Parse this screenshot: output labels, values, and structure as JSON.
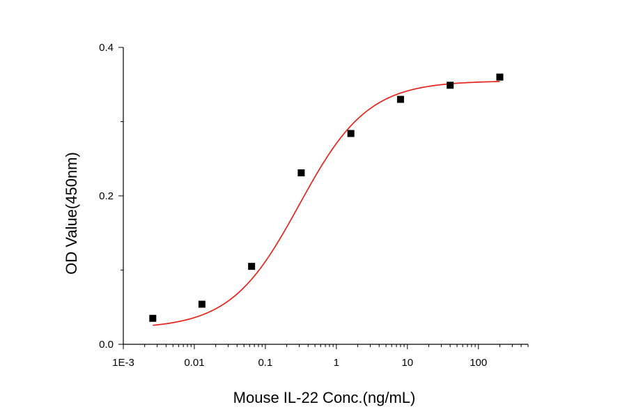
{
  "chart_data": {
    "type": "scatter",
    "title": "",
    "xlabel": "Mouse IL-22 Conc.(ng/mL)",
    "ylabel": "OD Value(450nm)",
    "x_scale": "log",
    "xlim": [
      0.001,
      500
    ],
    "ylim": [
      0,
      0.4
    ],
    "x_ticks": [
      0.001,
      0.01,
      0.1,
      1,
      10,
      100
    ],
    "x_tick_labels": [
      "1E-3",
      "0.01",
      "0.1",
      "1",
      "10",
      "100"
    ],
    "y_ticks": [
      0,
      0.2,
      0.4
    ],
    "y_tick_labels": [
      "0.0",
      "0.2",
      "0.4"
    ],
    "grid": false,
    "series": [
      {
        "marker": "square",
        "color": "#000000",
        "x": [
          0.0026,
          0.0128,
          0.064,
          0.32,
          1.6,
          8,
          40,
          200
        ],
        "y": [
          0.035,
          0.054,
          0.105,
          0.231,
          0.284,
          0.33,
          0.349,
          0.36
        ]
      }
    ],
    "fit": {
      "model": "4PL",
      "color": "#e8231c",
      "bottom": 0.021,
      "top": 0.355,
      "ec50": 0.3,
      "hill": 0.9,
      "x_range": [
        0.0026,
        200
      ]
    }
  }
}
